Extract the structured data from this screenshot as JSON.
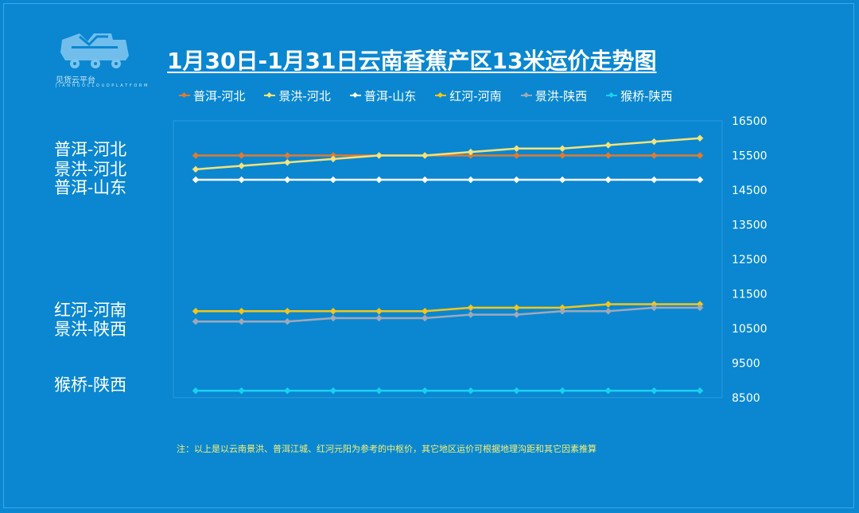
{
  "logo": {
    "caption": "见货云平台",
    "sub": "J I A N H U O  C L O U D  P L A T F O R M"
  },
  "colors": {
    "background": "#0a87d0",
    "grid": "#2a9ae0"
  },
  "side_labels": {
    "group1": [
      "普洱-河北",
      "景洪-河北",
      "普洱-山东"
    ],
    "group2": [
      "红河-河南",
      "景洪-陕西"
    ],
    "group3": [
      "猴桥-陕西"
    ]
  },
  "note": "注：以上是以云南景洪、普洱江城、红河元阳为参考的中枢价，其它地区运价可根据地理沟距和其它因素推算",
  "chart_data": {
    "type": "line",
    "title": "1月30日-1月31日云南香蕉产区13米运价走势图",
    "xlabel": "",
    "ylabel": "",
    "ylim": [
      8500,
      16500
    ],
    "yticks": [
      16500,
      15500,
      14500,
      13500,
      12500,
      11500,
      10500,
      9500,
      8500
    ],
    "y_axis_side": "right",
    "grid": false,
    "legend_position": "top",
    "x": [
      1,
      2,
      3,
      4,
      5,
      6,
      7,
      8,
      9,
      10,
      11,
      12
    ],
    "series": [
      {
        "name": "普洱-河北",
        "color": "#e07a30",
        "values": [
          15500,
          15500,
          15500,
          15500,
          15500,
          15500,
          15500,
          15500,
          15500,
          15500,
          15500,
          15500
        ]
      },
      {
        "name": "景洪-河北",
        "color": "#f5e27a",
        "values": [
          15100,
          15200,
          15300,
          15400,
          15500,
          15500,
          15600,
          15700,
          15700,
          15800,
          15900,
          16000
        ]
      },
      {
        "name": "普洱-山东",
        "color": "#ffffff",
        "values": [
          14800,
          14800,
          14800,
          14800,
          14800,
          14800,
          14800,
          14800,
          14800,
          14800,
          14800,
          14800
        ]
      },
      {
        "name": "红河-河南",
        "color": "#f5c518",
        "values": [
          11000,
          11000,
          11000,
          11000,
          11000,
          11000,
          11100,
          11100,
          11100,
          11200,
          11200,
          11200
        ]
      },
      {
        "name": "景洪-陕西",
        "color": "#a0a8b8",
        "values": [
          10700,
          10700,
          10700,
          10800,
          10800,
          10800,
          10900,
          10900,
          11000,
          11000,
          11100,
          11100
        ]
      },
      {
        "name": "猴桥-陕西",
        "color": "#1ad0f0",
        "values": [
          8700,
          8700,
          8700,
          8700,
          8700,
          8700,
          8700,
          8700,
          8700,
          8700,
          8700,
          8700
        ]
      }
    ]
  }
}
